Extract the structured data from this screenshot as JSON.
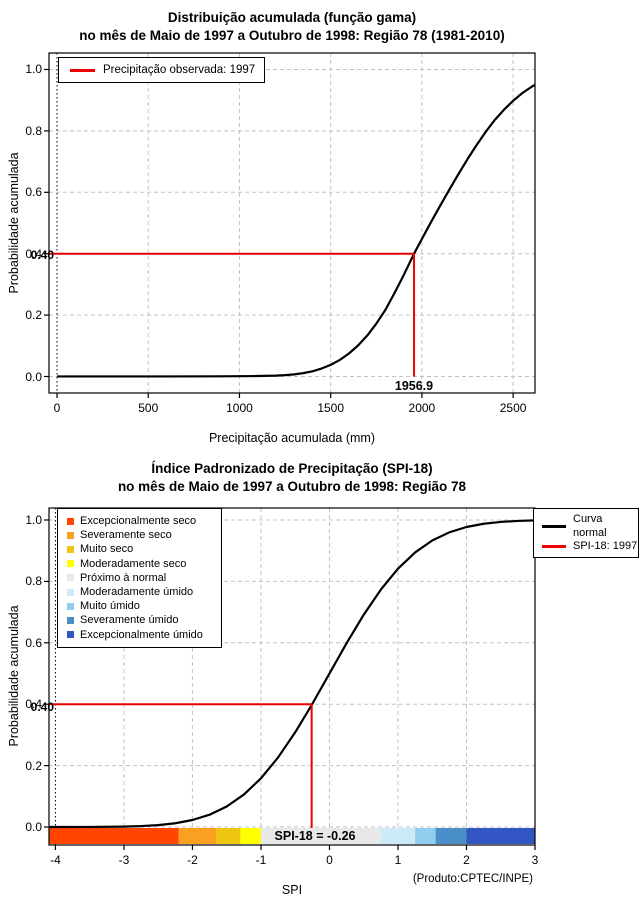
{
  "page": {
    "background": "#FFFFFF",
    "accent_red": "#EE0000"
  },
  "chart_data": [
    {
      "type": "line",
      "title_line1": "Distribuição acumulada (função gama)",
      "title_line2": "no mês de Maio de 1997 a Outubro de 1998: Região 78 (1981-2010)",
      "xlabel": "Precipitação acumulada (mm)",
      "ylabel": "Probabilidade acumulada",
      "xlim": [
        -44,
        2620
      ],
      "ylim": [
        -0.0537,
        1.0537
      ],
      "x_ticks": [
        0,
        500,
        1000,
        1500,
        2000,
        2500
      ],
      "x_tick_labels": [
        "0",
        "500",
        "1000",
        "1500",
        "2000",
        "2500"
      ],
      "y_ticks": [
        0.0,
        0.2,
        0.4,
        0.6,
        0.8,
        1.0
      ],
      "y_tick_labels": [
        "0.0",
        "0.2",
        "0.4",
        "0.6",
        "0.8",
        "1.0"
      ],
      "grid": true,
      "black_dotted_vlines": [
        0
      ],
      "legend": {
        "position": "top-left",
        "items": [
          {
            "label": "Precipitação observada: 1997",
            "color": "#EE0000",
            "marker": "line"
          }
        ]
      },
      "series": [
        {
          "name": "Distribuição gama acumulada",
          "color": "#000000",
          "points": [
            [
              0,
              0.0002
            ],
            [
              300,
              0.0002
            ],
            [
              600,
              0.0003
            ],
            [
              900,
              0.0006
            ],
            [
              1000,
              0.001
            ],
            [
              1100,
              0.0016
            ],
            [
              1200,
              0.003
            ],
            [
              1250,
              0.0045
            ],
            [
              1300,
              0.007
            ],
            [
              1350,
              0.011
            ],
            [
              1400,
              0.017
            ],
            [
              1450,
              0.026
            ],
            [
              1500,
              0.038
            ],
            [
              1550,
              0.054
            ],
            [
              1600,
              0.075
            ],
            [
              1650,
              0.101
            ],
            [
              1700,
              0.133
            ],
            [
              1750,
              0.172
            ],
            [
              1800,
              0.217
            ],
            [
              1850,
              0.272
            ],
            [
              1900,
              0.33
            ],
            [
              1956.9,
              0.4
            ],
            [
              2000,
              0.448
            ],
            [
              2050,
              0.503
            ],
            [
              2100,
              0.556
            ],
            [
              2150,
              0.608
            ],
            [
              2200,
              0.659
            ],
            [
              2250,
              0.708
            ],
            [
              2300,
              0.754
            ],
            [
              2350,
              0.797
            ],
            [
              2400,
              0.836
            ],
            [
              2450,
              0.869
            ],
            [
              2500,
              0.898
            ],
            [
              2550,
              0.923
            ],
            [
              2600,
              0.943
            ],
            [
              2620,
              0.95
            ]
          ]
        }
      ],
      "annotation": {
        "x": 1956.9,
        "y": 0.4,
        "x_label": "1956.9",
        "y_axis_label": "0.40",
        "color": "#EE0000"
      }
    },
    {
      "type": "line",
      "title_line1": "Índice Padronizado de Precipitação (SPI-18)",
      "title_line2": "no mês de Maio de 1997 a Outubro de 1998: Região 78",
      "xlabel": "SPI",
      "ylabel": "Probabilidade acumulada",
      "note": "(Produto:CPTEC/INPE)",
      "xlim": [
        -4.094,
        3.0
      ],
      "ylim": [
        -0.0586,
        1.0391
      ],
      "x_ticks": [
        -4,
        -3,
        -2,
        -1,
        0,
        1,
        2,
        3
      ],
      "x_tick_labels": [
        "-4",
        "-3",
        "-2",
        "-1",
        "0",
        "1",
        "2",
        "3"
      ],
      "y_ticks": [
        0.0,
        0.2,
        0.4,
        0.6,
        0.8,
        1.0
      ],
      "y_tick_labels": [
        "0.0",
        "0.2",
        "0.4",
        "0.6",
        "0.8",
        "1.0"
      ],
      "grid": true,
      "black_dotted_vlines": [
        -4,
        3
      ],
      "legend_categories": {
        "position": "top-left",
        "items": [
          {
            "label": "Excepcionalmente seco",
            "color": "#FF4500"
          },
          {
            "label": "Severamente seco",
            "color": "#F9A020"
          },
          {
            "label": "Muito seco",
            "color": "#EEC611"
          },
          {
            "label": "Moderadamente seco",
            "color": "#FFFF00"
          },
          {
            "label": "Próximo à normal",
            "color": "#E8E8E8"
          },
          {
            "label": "Moderadamente úmido",
            "color": "#CCEAF8"
          },
          {
            "label": "Muito úmido",
            "color": "#90CEF0"
          },
          {
            "label": "Severamente úmido",
            "color": "#4A90C8"
          },
          {
            "label": "Excepcionalmente úmido",
            "color": "#3156C4"
          }
        ]
      },
      "legend_series": {
        "position": "top-right",
        "items": [
          {
            "label_lines": [
              "Curva",
              "normal"
            ],
            "color": "#000000"
          },
          {
            "label_lines": [
              "SPI-18: 1997"
            ],
            "color": "#EE0000"
          }
        ]
      },
      "colorbar": [
        {
          "from": -4.094,
          "to": -2.2,
          "color": "#FF4500",
          "label": "Excepcionalmente seco"
        },
        {
          "from": -2.2,
          "to": -1.65,
          "color": "#F9A020",
          "label": "Severamente seco"
        },
        {
          "from": -1.65,
          "to": -1.3,
          "color": "#EEC611",
          "label": "Muito seco"
        },
        {
          "from": -1.3,
          "to": -1.0,
          "color": "#FFFF00",
          "label": "Moderadamente seco"
        },
        {
          "from": -1.0,
          "to": 0.75,
          "color": "#E8E8E8",
          "label": "Próximo à normal"
        },
        {
          "from": 0.75,
          "to": 1.25,
          "color": "#CCEAF8",
          "label": "Moderadamente úmido"
        },
        {
          "from": 1.25,
          "to": 1.55,
          "color": "#90CEF0",
          "label": "Muito úmido"
        },
        {
          "from": 1.55,
          "to": 2.0,
          "color": "#4A90C8",
          "label": "Severamente úmido"
        },
        {
          "from": 2.0,
          "to": 3.0,
          "color": "#3156C4",
          "label": "Excepcionalmente úmido"
        }
      ],
      "series": [
        {
          "name": "Curva normal",
          "color": "#000000",
          "points": [
            [
              -4.094,
              0.0
            ],
            [
              -3.5,
              0.0002
            ],
            [
              -3,
              0.0013
            ],
            [
              -2.75,
              0.003
            ],
            [
              -2.5,
              0.0062
            ],
            [
              -2.25,
              0.0122
            ],
            [
              -2,
              0.0228
            ],
            [
              -1.75,
              0.0401
            ],
            [
              -1.5,
              0.0668
            ],
            [
              -1.25,
              0.1056
            ],
            [
              -1,
              0.1587
            ],
            [
              -0.75,
              0.2266
            ],
            [
              -0.5,
              0.3085
            ],
            [
              -0.26,
              0.3974
            ],
            [
              0,
              0.5
            ],
            [
              0.25,
              0.5987
            ],
            [
              0.5,
              0.6915
            ],
            [
              0.75,
              0.7734
            ],
            [
              1,
              0.8413
            ],
            [
              1.25,
              0.8944
            ],
            [
              1.5,
              0.9332
            ],
            [
              1.75,
              0.9599
            ],
            [
              2,
              0.9772
            ],
            [
              2.25,
              0.9878
            ],
            [
              2.5,
              0.9938
            ],
            [
              2.75,
              0.997
            ],
            [
              3,
              0.9987
            ]
          ]
        }
      ],
      "annotation": {
        "x": -0.26,
        "y": 0.4,
        "label": "SPI-18 = -0.26",
        "y_axis_label": "0.40",
        "color": "#EE0000"
      }
    }
  ]
}
